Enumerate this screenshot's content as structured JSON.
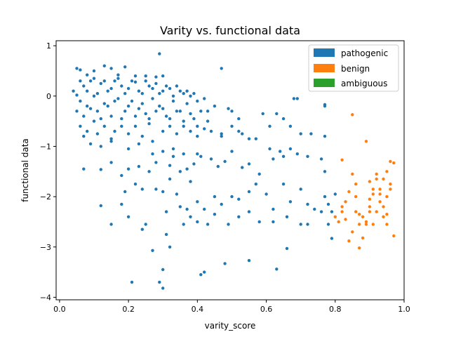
{
  "chart_data": {
    "type": "scatter",
    "title": "Varity vs. functional data",
    "xlabel": "varity_score",
    "ylabel": "functional data",
    "xlim": [
      -0.01,
      1.0
    ],
    "ylim": [
      -4.05,
      1.1
    ],
    "xticks": [
      0.0,
      0.2,
      0.4,
      0.6,
      0.8,
      1.0
    ],
    "xtick_labels": [
      "0.0",
      "0.2",
      "0.4",
      "0.6",
      "0.8",
      "1.0"
    ],
    "yticks": [
      1,
      0,
      -1,
      -2,
      -3,
      -4
    ],
    "ytick_labels": [
      "1",
      "0",
      "−1",
      "−2",
      "−3",
      "−4"
    ],
    "grid": false,
    "legend_position": "upper right",
    "legend": [
      {
        "name": "pathogenic",
        "color": "#1f77b4"
      },
      {
        "name": "benign",
        "color": "#ff7f0e"
      },
      {
        "name": "ambiguous",
        "color": "#2ca02c"
      }
    ],
    "series": [
      {
        "name": "pathogenic",
        "color": "#1f77b4",
        "points": [
          [
            0.05,
            0.55
          ],
          [
            0.06,
            0.52
          ],
          [
            0.08,
            0.42
          ],
          [
            0.1,
            0.5
          ],
          [
            0.13,
            0.6
          ],
          [
            0.15,
            0.55
          ],
          [
            0.19,
            0.58
          ],
          [
            0.17,
            0.42
          ],
          [
            0.22,
            0.4
          ],
          [
            0.25,
            0.4
          ],
          [
            0.28,
            0.38
          ],
          [
            0.3,
            0.4
          ],
          [
            0.29,
            0.84
          ],
          [
            0.47,
            0.55
          ],
          [
            0.04,
            0.1
          ],
          [
            0.05,
            0.02
          ],
          [
            0.06,
            -0.1
          ],
          [
            0.07,
            0.2
          ],
          [
            0.08,
            -0.2
          ],
          [
            0.09,
            0.3
          ],
          [
            0.1,
            0.0
          ],
          [
            0.11,
            -0.3
          ],
          [
            0.12,
            0.25
          ],
          [
            0.13,
            -0.15
          ],
          [
            0.14,
            0.1
          ],
          [
            0.15,
            -0.4
          ],
          [
            0.16,
            0.3
          ],
          [
            0.17,
            -0.05
          ],
          [
            0.18,
            0.2
          ],
          [
            0.19,
            -0.3
          ],
          [
            0.2,
            0.15
          ],
          [
            0.21,
            -0.1
          ],
          [
            0.22,
            0.28
          ],
          [
            0.23,
            -0.25
          ],
          [
            0.24,
            0.05
          ],
          [
            0.25,
            -0.35
          ],
          [
            0.26,
            0.2
          ],
          [
            0.27,
            -0.05
          ],
          [
            0.28,
            0.25
          ],
          [
            0.29,
            -0.2
          ],
          [
            0.3,
            0.1
          ],
          [
            0.31,
            -0.4
          ],
          [
            0.32,
            0.15
          ],
          [
            0.33,
            -0.1
          ],
          [
            0.34,
            0.2
          ],
          [
            0.35,
            -0.3
          ],
          [
            0.36,
            0.05
          ],
          [
            0.37,
            -0.15
          ],
          [
            0.38,
            0.0
          ],
          [
            0.39,
            -0.45
          ],
          [
            0.4,
            -0.1
          ],
          [
            0.41,
            -0.3
          ],
          [
            0.42,
            -0.05
          ],
          [
            0.43,
            -0.5
          ],
          [
            0.05,
            -0.3
          ],
          [
            0.06,
            0.3
          ],
          [
            0.07,
            -0.4
          ],
          [
            0.08,
            0.1
          ],
          [
            0.09,
            -0.25
          ],
          [
            0.1,
            0.35
          ],
          [
            0.11,
            0.05
          ],
          [
            0.12,
            -0.45
          ],
          [
            0.13,
            0.3
          ],
          [
            0.14,
            -0.2
          ],
          [
            0.15,
            0.15
          ],
          [
            0.16,
            -0.1
          ],
          [
            0.17,
            0.35
          ],
          [
            0.18,
            -0.45
          ],
          [
            0.19,
            0.05
          ],
          [
            0.2,
            -0.2
          ],
          [
            0.21,
            0.3
          ],
          [
            0.22,
            -0.4
          ],
          [
            0.23,
            0.1
          ],
          [
            0.24,
            -0.15
          ],
          [
            0.25,
            0.3
          ],
          [
            0.26,
            -0.45
          ],
          [
            0.27,
            0.15
          ],
          [
            0.28,
            -0.3
          ],
          [
            0.29,
            0.05
          ],
          [
            0.3,
            -0.25
          ],
          [
            0.31,
            0.2
          ],
          [
            0.32,
            -0.45
          ],
          [
            0.33,
            0.0
          ],
          [
            0.34,
            -0.3
          ],
          [
            0.35,
            0.1
          ],
          [
            0.36,
            -0.5
          ],
          [
            0.37,
            0.1
          ],
          [
            0.38,
            -0.35
          ],
          [
            0.39,
            0.05
          ],
          [
            0.4,
            -0.6
          ],
          [
            0.06,
            -0.6
          ],
          [
            0.07,
            -0.8
          ],
          [
            0.08,
            -0.7
          ],
          [
            0.1,
            -0.5
          ],
          [
            0.11,
            -0.75
          ],
          [
            0.13,
            -0.6
          ],
          [
            0.15,
            -0.9
          ],
          [
            0.16,
            -0.7
          ],
          [
            0.18,
            -0.6
          ],
          [
            0.2,
            -0.75
          ],
          [
            0.22,
            -0.6
          ],
          [
            0.24,
            -0.8
          ],
          [
            0.26,
            -0.55
          ],
          [
            0.27,
            -0.9
          ],
          [
            0.3,
            -0.7
          ],
          [
            0.32,
            -0.6
          ],
          [
            0.34,
            -0.75
          ],
          [
            0.36,
            -0.6
          ],
          [
            0.38,
            -0.7
          ],
          [
            0.4,
            -0.8
          ],
          [
            0.42,
            -0.65
          ],
          [
            0.44,
            -0.7
          ],
          [
            0.45,
            -0.2
          ],
          [
            0.43,
            -0.3
          ],
          [
            0.09,
            -0.95
          ],
          [
            0.12,
            -1.0
          ],
          [
            0.15,
            -0.85
          ],
          [
            0.2,
            -1.05
          ],
          [
            0.23,
            -0.95
          ],
          [
            0.27,
            -1.15
          ],
          [
            0.3,
            -1.1
          ],
          [
            0.33,
            -1.05
          ],
          [
            0.36,
            -1.15
          ],
          [
            0.4,
            -1.15
          ],
          [
            0.41,
            -1.2
          ],
          [
            0.47,
            -0.75
          ],
          [
            0.5,
            -0.6
          ],
          [
            0.52,
            -0.7
          ],
          [
            0.53,
            -0.75
          ],
          [
            0.55,
            -0.85
          ],
          [
            0.47,
            -0.8
          ],
          [
            0.49,
            -0.25
          ],
          [
            0.5,
            -0.3
          ],
          [
            0.52,
            -0.45
          ],
          [
            0.57,
            -0.85
          ],
          [
            0.59,
            -0.35
          ],
          [
            0.61,
            -0.6
          ],
          [
            0.63,
            -0.35
          ],
          [
            0.65,
            -0.45
          ],
          [
            0.67,
            -0.6
          ],
          [
            0.68,
            -0.05
          ],
          [
            0.69,
            -0.05
          ],
          [
            0.7,
            -0.75
          ],
          [
            0.73,
            -0.75
          ],
          [
            0.77,
            -0.8
          ],
          [
            0.77,
            -0.17
          ],
          [
            0.77,
            -0.2
          ],
          [
            0.07,
            -1.45
          ],
          [
            0.12,
            -1.46
          ],
          [
            0.15,
            -1.32
          ],
          [
            0.18,
            -1.58
          ],
          [
            0.2,
            -1.45
          ],
          [
            0.23,
            -1.4
          ],
          [
            0.26,
            -1.5
          ],
          [
            0.28,
            -1.32
          ],
          [
            0.32,
            -1.38
          ],
          [
            0.33,
            -1.2
          ],
          [
            0.35,
            -1.5
          ],
          [
            0.37,
            -1.45
          ],
          [
            0.39,
            -1.35
          ],
          [
            0.44,
            -1.25
          ],
          [
            0.46,
            -1.4
          ],
          [
            0.48,
            -1.3
          ],
          [
            0.5,
            -1.1
          ],
          [
            0.53,
            -1.42
          ],
          [
            0.55,
            -1.35
          ],
          [
            0.58,
            -1.55
          ],
          [
            0.61,
            -1.05
          ],
          [
            0.62,
            -1.25
          ],
          [
            0.64,
            -1.1
          ],
          [
            0.65,
            -1.2
          ],
          [
            0.67,
            -1.05
          ],
          [
            0.69,
            -1.15
          ],
          [
            0.72,
            -1.2
          ],
          [
            0.76,
            -1.25
          ],
          [
            0.77,
            -1.5
          ],
          [
            0.12,
            -2.18
          ],
          [
            0.18,
            -2.15
          ],
          [
            0.19,
            -1.9
          ],
          [
            0.22,
            -1.75
          ],
          [
            0.24,
            -1.85
          ],
          [
            0.25,
            -2.55
          ],
          [
            0.28,
            -1.85
          ],
          [
            0.3,
            -1.9
          ],
          [
            0.31,
            -2.3
          ],
          [
            0.32,
            -1.65
          ],
          [
            0.34,
            -1.95
          ],
          [
            0.35,
            -2.2
          ],
          [
            0.37,
            -2.25
          ],
          [
            0.38,
            -1.7
          ],
          [
            0.4,
            -2.1
          ],
          [
            0.42,
            -2.25
          ],
          [
            0.45,
            -2.0
          ],
          [
            0.47,
            -2.15
          ],
          [
            0.5,
            -2.0
          ],
          [
            0.52,
            -2.05
          ],
          [
            0.55,
            -1.9
          ],
          [
            0.57,
            -1.75
          ],
          [
            0.6,
            -1.95
          ],
          [
            0.62,
            -2.25
          ],
          [
            0.65,
            -1.75
          ],
          [
            0.67,
            -2.1
          ],
          [
            0.7,
            -1.85
          ],
          [
            0.72,
            -2.15
          ],
          [
            0.74,
            -2.25
          ],
          [
            0.76,
            -2.3
          ],
          [
            0.78,
            -2.15
          ],
          [
            0.79,
            -2.3
          ],
          [
            0.8,
            -1.95
          ],
          [
            0.78,
            -2.55
          ],
          [
            0.77,
            -2.0
          ],
          [
            0.15,
            -2.55
          ],
          [
            0.2,
            -2.4
          ],
          [
            0.24,
            -2.65
          ],
          [
            0.27,
            -3.07
          ],
          [
            0.31,
            -2.75
          ],
          [
            0.32,
            -3.0
          ],
          [
            0.36,
            -2.55
          ],
          [
            0.38,
            -2.4
          ],
          [
            0.4,
            -2.5
          ],
          [
            0.43,
            -2.55
          ],
          [
            0.45,
            -2.35
          ],
          [
            0.49,
            -2.55
          ],
          [
            0.52,
            -2.4
          ],
          [
            0.55,
            -2.3
          ],
          [
            0.58,
            -2.5
          ],
          [
            0.62,
            -2.5
          ],
          [
            0.66,
            -2.4
          ],
          [
            0.7,
            -2.55
          ],
          [
            0.72,
            -2.55
          ],
          [
            0.79,
            -2.83
          ],
          [
            0.21,
            -3.7
          ],
          [
            0.29,
            -3.7
          ],
          [
            0.3,
            -3.45
          ],
          [
            0.3,
            -3.82
          ],
          [
            0.41,
            -3.55
          ],
          [
            0.42,
            -3.5
          ],
          [
            0.48,
            -3.33
          ],
          [
            0.55,
            -3.27
          ],
          [
            0.66,
            -3.03
          ],
          [
            0.63,
            -3.44
          ]
        ]
      },
      {
        "name": "benign",
        "color": "#ff7f0e",
        "points": [
          [
            0.85,
            -0.37
          ],
          [
            0.89,
            -0.9
          ],
          [
            0.82,
            -1.27
          ],
          [
            0.8,
            -2.4
          ],
          [
            0.81,
            -2.5
          ],
          [
            0.82,
            -2.3
          ],
          [
            0.83,
            -2.1
          ],
          [
            0.84,
            -1.9
          ],
          [
            0.85,
            -1.55
          ],
          [
            0.86,
            -2.0
          ],
          [
            0.86,
            -2.3
          ],
          [
            0.87,
            -2.55
          ],
          [
            0.87,
            -3.02
          ],
          [
            0.88,
            -2.4
          ],
          [
            0.89,
            -2.55
          ],
          [
            0.9,
            -1.7
          ],
          [
            0.9,
            -2.2
          ],
          [
            0.91,
            -1.95
          ],
          [
            0.92,
            -1.55
          ],
          [
            0.92,
            -2.3
          ],
          [
            0.93,
            -1.85
          ],
          [
            0.93,
            -2.1
          ],
          [
            0.94,
            -1.65
          ],
          [
            0.94,
            -2.4
          ],
          [
            0.95,
            -1.5
          ],
          [
            0.95,
            -2.0
          ],
          [
            0.95,
            -2.55
          ],
          [
            0.96,
            -1.3
          ],
          [
            0.96,
            -1.75
          ],
          [
            0.97,
            -2.78
          ],
          [
            0.84,
            -2.88
          ],
          [
            0.85,
            -2.7
          ],
          [
            0.88,
            -2.82
          ],
          [
            0.89,
            -2.5
          ],
          [
            0.9,
            -2.3
          ],
          [
            0.91,
            -2.55
          ],
          [
            0.92,
            -1.65
          ],
          [
            0.93,
            -1.95
          ],
          [
            0.83,
            -2.45
          ],
          [
            0.86,
            -1.75
          ],
          [
            0.87,
            -2.35
          ],
          [
            0.9,
            -2.05
          ],
          [
            0.91,
            -1.85
          ],
          [
            0.94,
            -2.2
          ],
          [
            0.95,
            -2.35
          ],
          [
            0.96,
            -1.85
          ],
          [
            0.97,
            -1.33
          ],
          [
            0.82,
            -2.2
          ]
        ]
      }
    ]
  }
}
